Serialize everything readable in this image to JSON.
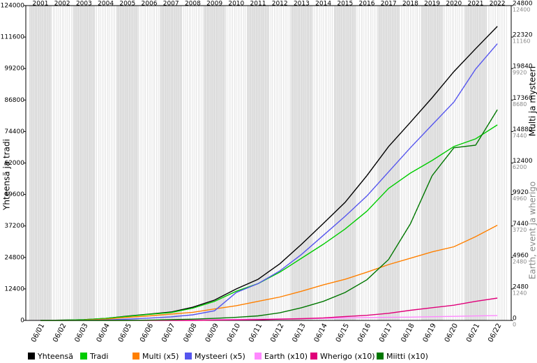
{
  "chart_data": {
    "type": "line",
    "y_label": "Yhteensä ja tradi",
    "y2_label": "Multi ja mysteeri",
    "y3_label": "Earth, event ja wherigo",
    "years": [
      "2001",
      "2002",
      "2003",
      "2004",
      "2005",
      "2006",
      "2007",
      "2008",
      "2009",
      "2010",
      "2011",
      "2012",
      "2013",
      "2014",
      "2015",
      "2016",
      "2017",
      "2018",
      "2019",
      "2020",
      "2021",
      "2022"
    ],
    "categories": [
      "06/01",
      "06/02",
      "06/03",
      "06/04",
      "06/05",
      "06/06",
      "06/07",
      "06/08",
      "06/09",
      "06/10",
      "06/11",
      "06/12",
      "06/13",
      "06/14",
      "06/15",
      "06/16",
      "06/17",
      "06/18",
      "06/19",
      "06/20",
      "06/21",
      "06/22"
    ],
    "ylim": [
      0,
      124000
    ],
    "yticks": [
      0,
      12400,
      24800,
      37200,
      49600,
      62000,
      74400,
      86800,
      99200,
      111600,
      124000
    ],
    "y2lim": [
      0,
      24800
    ],
    "y2ticks": [
      0,
      2480,
      4960,
      7440,
      9920,
      12400,
      14880,
      17360,
      19840,
      22320,
      24800
    ],
    "y3lim": [
      0,
      12400
    ],
    "y3ticks": [
      0,
      1240,
      2480,
      3720,
      4960,
      6200,
      7440,
      8680,
      9920,
      11160,
      12400
    ],
    "series": [
      {
        "name": "Yhteensä",
        "color": "#000000",
        "axis": "y",
        "values": [
          0,
          100,
          300,
          800,
          1700,
          2500,
          3300,
          5200,
          8000,
          12400,
          16200,
          22300,
          30000,
          38200,
          46500,
          57000,
          68500,
          78000,
          87700,
          98000,
          107000,
          115800
        ]
      },
      {
        "name": "Tradi",
        "color": "#00cc00",
        "axis": "y",
        "values": [
          0,
          100,
          300,
          800,
          1600,
          2400,
          3100,
          4800,
          7500,
          11500,
          14500,
          19000,
          24500,
          30000,
          36000,
          43000,
          52000,
          58000,
          63000,
          68500,
          71500,
          77000
        ]
      },
      {
        "name": "Multi (x5)",
        "color": "#ff8000",
        "axis": "y2",
        "values": [
          0,
          0,
          20,
          100,
          240,
          360,
          500,
          640,
          900,
          1160,
          1500,
          1840,
          2300,
          2800,
          3240,
          3800,
          4400,
          4900,
          5400,
          5800,
          6600,
          7500
        ]
      },
      {
        "name": "Mysteeri (x5)",
        "color": "#5555ee",
        "axis": "y2",
        "values": [
          0,
          0,
          10,
          40,
          100,
          180,
          280,
          440,
          760,
          2200,
          2900,
          3900,
          5200,
          6700,
          8200,
          9800,
          11700,
          13600,
          15400,
          17200,
          19800,
          21800
        ]
      },
      {
        "name": "Earth (x10)",
        "color": "#ff88ff",
        "axis": "y3",
        "values": [
          0,
          0,
          0,
          0,
          5,
          10,
          15,
          20,
          30,
          40,
          50,
          60,
          70,
          80,
          95,
          110,
          120,
          130,
          145,
          160,
          175,
          190
        ]
      },
      {
        "name": "Wherigo (x10)",
        "color": "#e0007a",
        "axis": "y3",
        "values": [
          0,
          0,
          0,
          0,
          0,
          0,
          0,
          0,
          10,
          20,
          30,
          50,
          70,
          100,
          150,
          200,
          280,
          400,
          500,
          600,
          750,
          880
        ]
      },
      {
        "name": "Miitti (x10)",
        "color": "#007700",
        "axis": "y3",
        "values": [
          0,
          0,
          0,
          0,
          0,
          10,
          30,
          50,
          80,
          120,
          180,
          300,
          500,
          750,
          1100,
          1600,
          2400,
          3800,
          5700,
          6800,
          6900,
          8300
        ]
      }
    ]
  }
}
